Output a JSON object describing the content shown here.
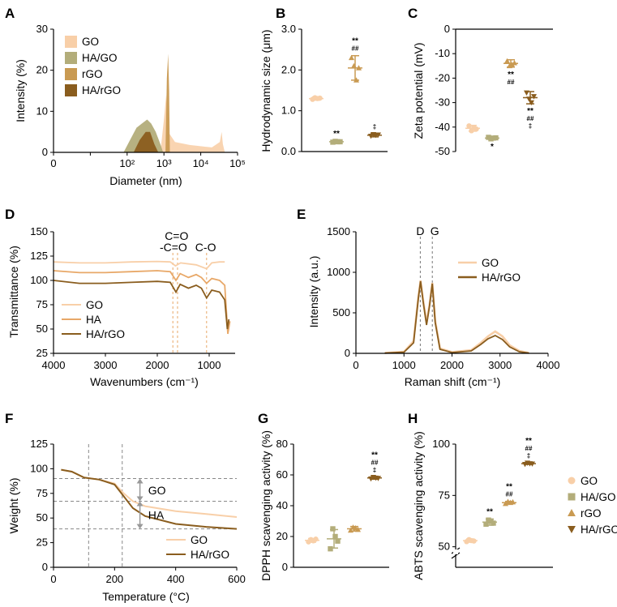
{
  "panels": [
    {
      "label": "A"
    },
    {
      "label": "B"
    },
    {
      "label": "C"
    },
    {
      "label": "D"
    },
    {
      "label": "E"
    },
    {
      "label": "F"
    },
    {
      "label": "G"
    },
    {
      "label": "H"
    }
  ],
  "colors": {
    "GO": "#f8cfa8",
    "HA/GO": "#b3ad7a",
    "rGO": "#c99a52",
    "HA/rGO": "#8a5d1e",
    "HA": "#e8a868"
  },
  "chart_data": [
    {
      "type": "area",
      "title": "A",
      "xlabel": "Diameter (nm)",
      "ylabel": "Intensity (%)",
      "xscale": "log",
      "xlim": [
        1,
        100000
      ],
      "ylim": [
        0,
        30
      ],
      "xticks": [
        0,
        "10²",
        "10³",
        "10⁴",
        "10⁵"
      ],
      "yticks": [
        0,
        10,
        20,
        30
      ],
      "legend": [
        "GO",
        "HA/GO",
        "rGO",
        "HA/rGO"
      ],
      "legend_position": "top-left",
      "series": [
        {
          "name": "GO",
          "points": [
            [
              800,
              0
            ],
            [
              1000,
              8
            ],
            [
              1150,
              14
            ],
            [
              1300,
              5
            ],
            [
              2000,
              2.5
            ],
            [
              5000,
              1.8
            ],
            [
              20000,
              1.2
            ],
            [
              33000,
              2.5
            ],
            [
              37000,
              5
            ],
            [
              40000,
              2
            ],
            [
              45000,
              0
            ]
          ]
        },
        {
          "name": "HA/GO",
          "points": [
            [
              80,
              0
            ],
            [
              120,
              3
            ],
            [
              180,
              6
            ],
            [
              250,
              7
            ],
            [
              350,
              8
            ],
            [
              450,
              7
            ],
            [
              600,
              5
            ],
            [
              800,
              2
            ],
            [
              950,
              0
            ]
          ]
        },
        {
          "name": "rGO",
          "points": [
            [
              1100,
              0
            ],
            [
              1200,
              18
            ],
            [
              1300,
              24
            ],
            [
              1380,
              15
            ],
            [
              1450,
              0
            ]
          ]
        },
        {
          "name": "HA/rGO",
          "points": [
            [
              150,
              0
            ],
            [
              220,
              3
            ],
            [
              320,
              5
            ],
            [
              420,
              5
            ],
            [
              550,
              2
            ],
            [
              700,
              0
            ]
          ]
        }
      ]
    },
    {
      "type": "scatter",
      "title": "B",
      "ylabel": "Hydrodynamic size (μm)",
      "ylim": [
        0,
        3
      ],
      "yticks": [
        "0.0",
        "1.0",
        "2.0",
        "3.0"
      ],
      "groups": [
        {
          "name": "GO",
          "mean": 1.3,
          "sd": 0.04,
          "points": [
            1.28,
            1.32,
            1.3,
            1.31
          ],
          "marker": "circle",
          "sig": []
        },
        {
          "name": "HA/GO",
          "mean": 0.24,
          "sd": 0.02,
          "points": [
            0.23,
            0.25,
            0.24,
            0.24
          ],
          "marker": "square",
          "sig": [
            "**"
          ]
        },
        {
          "name": "rGO",
          "mean": 2.05,
          "sd": 0.3,
          "points": [
            2.3,
            2.1,
            1.75,
            2.05
          ],
          "marker": "triangle-up",
          "sig": [
            "**",
            "##"
          ]
        },
        {
          "name": "HA/rGO",
          "mean": 0.4,
          "sd": 0.04,
          "points": [
            0.38,
            0.42,
            0.4,
            0.41
          ],
          "marker": "triangle-down",
          "sig": [
            "‡"
          ]
        }
      ]
    },
    {
      "type": "scatter",
      "title": "C",
      "ylabel": "Zeta potential (mV)",
      "ylim": [
        -50,
        0
      ],
      "yticks": [
        0,
        -10,
        -20,
        -30,
        -40,
        -50
      ],
      "groups": [
        {
          "name": "GO",
          "mean": -40.5,
          "sd": 1.2,
          "points": [
            -39.5,
            -41.5,
            -40.2,
            -40.8
          ],
          "marker": "circle",
          "sig": []
        },
        {
          "name": "HA/GO",
          "mean": -44.5,
          "sd": 0.5,
          "points": [
            -44.2,
            -44.8,
            -44.5,
            -44.4
          ],
          "marker": "square",
          "sig": [
            "*"
          ]
        },
        {
          "name": "rGO",
          "mean": -14,
          "sd": 1.5,
          "points": [
            -13,
            -15,
            -14.5,
            -13.8
          ],
          "marker": "triangle-up",
          "sig": [
            "**",
            "##"
          ]
        },
        {
          "name": "HA/rGO",
          "mean": -28,
          "sd": 2.5,
          "points": [
            -26,
            -28.5,
            -30,
            -27.5
          ],
          "marker": "triangle-down",
          "sig": [
            "**",
            "##",
            "‡"
          ]
        }
      ]
    },
    {
      "type": "line",
      "title": "D",
      "xlabel": "Wavenumbers (cm⁻¹)",
      "ylabel": "Transmittance (%)",
      "xlim": [
        4000,
        500
      ],
      "ylim": [
        25,
        150
      ],
      "xticks": [
        4000,
        3000,
        2000,
        1000
      ],
      "yticks": [
        25,
        50,
        75,
        100,
        125,
        150
      ],
      "annotations": [
        {
          "text": "C=O",
          "x": 1700
        },
        {
          "text": "-C=O",
          "x": 1610
        },
        {
          "text": "C-O",
          "x": 1050
        }
      ],
      "legend": [
        "GO",
        "HA",
        "HA/rGO"
      ],
      "legend_position": "bottom-left",
      "series": [
        {
          "name": "GO",
          "points": [
            [
              4000,
              119
            ],
            [
              3500,
              118
            ],
            [
              3000,
              118
            ],
            [
              2500,
              119
            ],
            [
              2000,
              119.5
            ],
            [
              1750,
              119
            ],
            [
              1650,
              115
            ],
            [
              1550,
              118
            ],
            [
              1250,
              116
            ],
            [
              1050,
              112
            ],
            [
              950,
              118
            ],
            [
              800,
              119
            ],
            [
              700,
              119
            ]
          ]
        },
        {
          "name": "HA",
          "points": [
            [
              4000,
              110
            ],
            [
              3500,
              108
            ],
            [
              3000,
              108
            ],
            [
              2500,
              109
            ],
            [
              2000,
              110
            ],
            [
              1750,
              109
            ],
            [
              1640,
              100
            ],
            [
              1560,
              107
            ],
            [
              1400,
              103
            ],
            [
              1250,
              106
            ],
            [
              1150,
              103
            ],
            [
              1050,
              97
            ],
            [
              950,
              102
            ],
            [
              800,
              100
            ],
            [
              700,
              95
            ],
            [
              640,
              45
            ],
            [
              600,
              58
            ]
          ]
        },
        {
          "name": "HA/rGO",
          "points": [
            [
              4000,
              100
            ],
            [
              3500,
              97
            ],
            [
              3000,
              97
            ],
            [
              2500,
              98
            ],
            [
              2000,
              99
            ],
            [
              1750,
              98
            ],
            [
              1640,
              88
            ],
            [
              1560,
              96
            ],
            [
              1400,
              92
            ],
            [
              1250,
              95
            ],
            [
              1150,
              92
            ],
            [
              1050,
              82
            ],
            [
              950,
              90
            ],
            [
              800,
              88
            ],
            [
              700,
              80
            ],
            [
              650,
              50
            ],
            [
              620,
              60
            ]
          ]
        }
      ]
    },
    {
      "type": "line",
      "title": "E",
      "xlabel": "Raman shift (cm⁻¹)",
      "ylabel": "Intensity (a.u.)",
      "xlim": [
        0,
        4000
      ],
      "ylim": [
        0,
        1500
      ],
      "xticks": [
        0,
        1000,
        2000,
        3000,
        4000
      ],
      "yticks": [
        0,
        500,
        1000,
        1500
      ],
      "annotations": [
        {
          "text": "D",
          "x": 1340
        },
        {
          "text": "G",
          "x": 1590
        }
      ],
      "legend": [
        "GO",
        "HA/rGO"
      ],
      "legend_position": "top-right",
      "series": [
        {
          "name": "GO",
          "points": [
            [
              600,
              5
            ],
            [
              1000,
              20
            ],
            [
              1200,
              150
            ],
            [
              1300,
              700
            ],
            [
              1345,
              900
            ],
            [
              1400,
              650
            ],
            [
              1470,
              380
            ],
            [
              1530,
              600
            ],
            [
              1590,
              870
            ],
            [
              1650,
              400
            ],
            [
              1750,
              60
            ],
            [
              2000,
              15
            ],
            [
              2400,
              40
            ],
            [
              2600,
              130
            ],
            [
              2750,
              210
            ],
            [
              2900,
              270
            ],
            [
              3050,
              210
            ],
            [
              3200,
              100
            ],
            [
              3400,
              30
            ],
            [
              3600,
              5
            ]
          ]
        },
        {
          "name": "HA/rGO",
          "points": [
            [
              600,
              3
            ],
            [
              1000,
              15
            ],
            [
              1200,
              130
            ],
            [
              1300,
              680
            ],
            [
              1345,
              890
            ],
            [
              1400,
              630
            ],
            [
              1470,
              350
            ],
            [
              1530,
              580
            ],
            [
              1590,
              860
            ],
            [
              1650,
              380
            ],
            [
              1750,
              50
            ],
            [
              2000,
              10
            ],
            [
              2400,
              30
            ],
            [
              2600,
              110
            ],
            [
              2750,
              180
            ],
            [
              2900,
              220
            ],
            [
              3050,
              170
            ],
            [
              3200,
              80
            ],
            [
              3400,
              20
            ],
            [
              3600,
              3
            ]
          ]
        }
      ]
    },
    {
      "type": "line",
      "title": "F",
      "xlabel": "Temperature (°C)",
      "ylabel": "Weight (%)",
      "xlim": [
        0,
        600
      ],
      "ylim": [
        0,
        125
      ],
      "xticks": [
        0,
        200,
        400,
        600
      ],
      "yticks": [
        0,
        25,
        50,
        75,
        100,
        125
      ],
      "guides_x": [
        115,
        225
      ],
      "guides_y": [
        90,
        67,
        39
      ],
      "annotations": [
        {
          "text": "GO",
          "x": 310,
          "y": 78
        },
        {
          "text": "HA",
          "x": 310,
          "y": 53
        }
      ],
      "legend": [
        "GO",
        "HA/rGO"
      ],
      "legend_position": "bottom-right",
      "series": [
        {
          "name": "GO",
          "points": [
            [
              25,
              99
            ],
            [
              60,
              97
            ],
            [
              100,
              91
            ],
            [
              150,
              89
            ],
            [
              200,
              85
            ],
            [
              230,
              75
            ],
            [
              260,
              67
            ],
            [
              300,
              62
            ],
            [
              400,
              57
            ],
            [
              500,
              54
            ],
            [
              600,
              51
            ]
          ]
        },
        {
          "name": "HA/rGO",
          "points": [
            [
              25,
              99
            ],
            [
              60,
              97
            ],
            [
              100,
              91
            ],
            [
              150,
              89
            ],
            [
              200,
              84
            ],
            [
              230,
              72
            ],
            [
              260,
              60
            ],
            [
              300,
              52
            ],
            [
              400,
              44
            ],
            [
              500,
              41
            ],
            [
              600,
              39
            ]
          ]
        }
      ]
    },
    {
      "type": "scatter",
      "title": "G",
      "ylabel": "DPPH scavenging activity (%)",
      "ylim": [
        0,
        80
      ],
      "yticks": [
        0,
        20,
        40,
        60,
        80
      ],
      "groups": [
        {
          "name": "GO",
          "mean": 17.5,
          "sd": 1.2,
          "points": [
            16.5,
            18,
            17.2,
            18.3
          ],
          "marker": "circle",
          "sig": []
        },
        {
          "name": "HA/GO",
          "mean": 18.5,
          "sd": 6,
          "points": [
            12,
            25,
            20,
            17
          ],
          "marker": "square",
          "sig": []
        },
        {
          "name": "rGO",
          "mean": 25,
          "sd": 1.5,
          "points": [
            24,
            26,
            25.5,
            24.5
          ],
          "marker": "triangle-up",
          "sig": []
        },
        {
          "name": "HA/rGO",
          "mean": 58,
          "sd": 0.8,
          "points": [
            57.5,
            58.5,
            58,
            57.8
          ],
          "marker": "triangle-down",
          "sig": [
            "**",
            "##",
            "‡"
          ]
        }
      ]
    },
    {
      "type": "scatter",
      "title": "H",
      "ylabel": "ABTS scavenging activity (%)",
      "ylim": [
        40,
        100
      ],
      "yticks": [
        50,
        75,
        100
      ],
      "axis_break": true,
      "legend": [
        "GO",
        "HA/GO",
        "rGO",
        "HA/rGO"
      ],
      "legend_position": "right",
      "groups": [
        {
          "name": "GO",
          "mean": 53,
          "sd": 0.8,
          "points": [
            52.5,
            53.5,
            53,
            52.8
          ],
          "marker": "circle",
          "sig": []
        },
        {
          "name": "HA/GO",
          "mean": 62,
          "sd": 1.5,
          "points": [
            61,
            63,
            62.5,
            61.5
          ],
          "marker": "square",
          "sig": [
            "**"
          ]
        },
        {
          "name": "rGO",
          "mean": 71.5,
          "sd": 0.6,
          "points": [
            71,
            72,
            71.5,
            71.8
          ],
          "marker": "triangle-up",
          "sig": [
            "**",
            "##"
          ]
        },
        {
          "name": "HA/rGO",
          "mean": 90.5,
          "sd": 0.4,
          "points": [
            90.2,
            90.8,
            90.5,
            90.4
          ],
          "marker": "triangle-down",
          "sig": [
            "**",
            "##",
            "‡"
          ]
        }
      ]
    }
  ]
}
